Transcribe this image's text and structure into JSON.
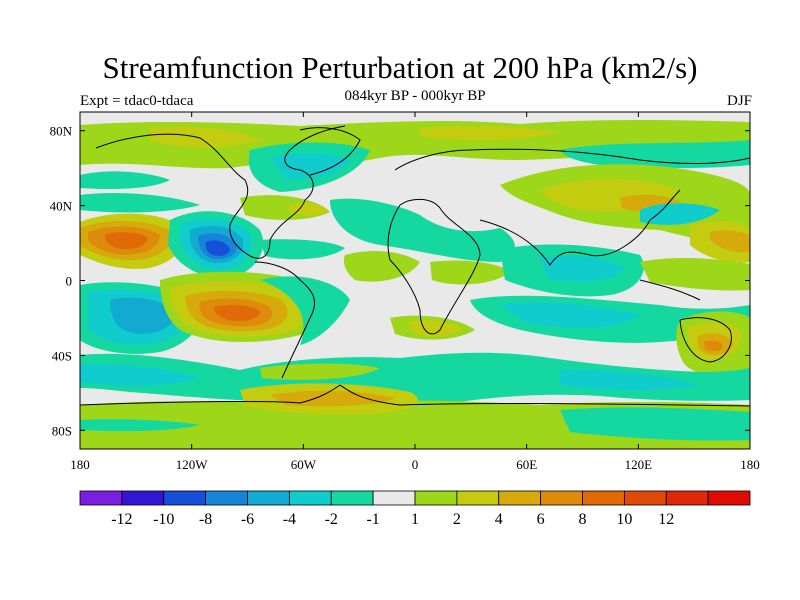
{
  "header": {
    "title": "Streamfunction Perturbation at 200 hPa (km2/s)",
    "subtitle": "084kyr BP - 000kyr BP",
    "left_label": "Expt = tdac0-tdaca",
    "right_label": "DJF"
  },
  "map": {
    "projection": "cylindrical-equidistant",
    "lon_range": [
      -180,
      180
    ],
    "lat_range": [
      -90,
      90
    ],
    "lon_ticks": [
      {
        "value": -180,
        "label": "180"
      },
      {
        "value": -120,
        "label": "120W"
      },
      {
        "value": -60,
        "label": "60W"
      },
      {
        "value": 0,
        "label": "0"
      },
      {
        "value": 60,
        "label": "60E"
      },
      {
        "value": 120,
        "label": "120E"
      },
      {
        "value": 180,
        "label": "180"
      }
    ],
    "lat_ticks": [
      {
        "value": 80,
        "label": "80N"
      },
      {
        "value": 40,
        "label": "40N"
      },
      {
        "value": 0,
        "label": "0"
      },
      {
        "value": -40,
        "label": "40S"
      },
      {
        "value": -80,
        "label": "80S"
      }
    ]
  },
  "colorbar": {
    "colors": [
      "#7a1fe0",
      "#3216d6",
      "#1650d8",
      "#1685d8",
      "#12aad0",
      "#10cccc",
      "#14d8a0",
      "#e9e9e9",
      "#9ed61a",
      "#c4cc10",
      "#d6aa0a",
      "#de8a0a",
      "#e06a08",
      "#e04a08",
      "#e02808",
      "#e00a00"
    ],
    "labels": [
      "-12",
      "-10",
      "-8",
      "-6",
      "-4",
      "-2",
      "-1",
      "1",
      "2",
      "4",
      "6",
      "8",
      "10",
      "12"
    ]
  }
}
